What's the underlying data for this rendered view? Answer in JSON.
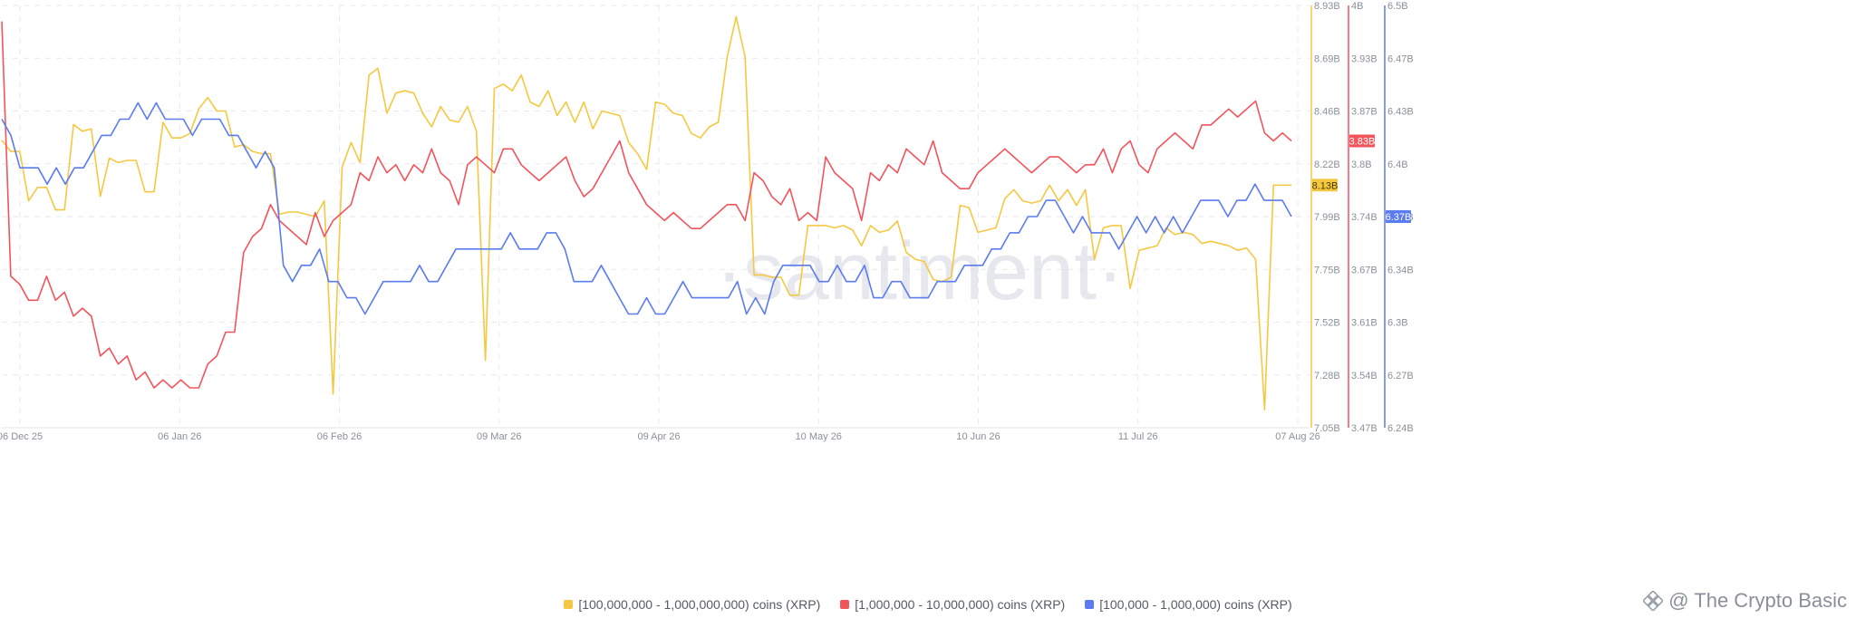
{
  "chart_data": {
    "type": "line",
    "x_ticks": [
      "06 Dec 25",
      "06 Jan 26",
      "06 Feb 26",
      "09 Mar 26",
      "09 Apr 26",
      "10 May 26",
      "10 Jun 26",
      "11 Jul 26",
      "07 Aug 26"
    ],
    "axes": [
      {
        "id": "yellow_axis",
        "ticks": [
          "8.93B",
          "8.69B",
          "8.46B",
          "8.22B",
          "7.99B",
          "7.75B",
          "7.52B",
          "7.28B",
          "7.05B"
        ],
        "ylim": [
          7.05,
          8.93
        ],
        "color": "#f5c842",
        "last_value_label": "8.13B"
      },
      {
        "id": "red_axis",
        "ticks": [
          "4B",
          "3.93B",
          "3.87B",
          "3.8B",
          "3.74B",
          "3.67B",
          "3.61B",
          "3.54B",
          "3.47B"
        ],
        "ylim": [
          3.47,
          4.0
        ],
        "color": "#f2545b",
        "last_value_label": "3.83B"
      },
      {
        "id": "blue_axis",
        "ticks": [
          "6.5B",
          "6.47B",
          "6.43B",
          "6.4B",
          "6.37B",
          "6.34B",
          "6.3B",
          "6.27B",
          "6.24B"
        ],
        "ylim": [
          6.24,
          6.5
        ],
        "color": "#5b7bf0",
        "last_value_label": "6.37B"
      }
    ],
    "series": [
      {
        "name": "[100,000,000 - 1,000,000,000) coins (XRP)",
        "axis": "yellow_axis",
        "color": "#f5c842",
        "values": [
          8.33,
          8.28,
          8.28,
          8.06,
          8.12,
          8.12,
          8.02,
          8.02,
          8.4,
          8.37,
          8.38,
          8.08,
          8.25,
          8.23,
          8.24,
          8.24,
          8.1,
          8.1,
          8.41,
          8.34,
          8.34,
          8.36,
          8.47,
          8.52,
          8.46,
          8.46,
          8.3,
          8.31,
          8.28,
          8.27,
          8.27,
          8.0,
          8.01,
          8.01,
          8.0,
          7.99,
          8.06,
          7.2,
          8.21,
          8.32,
          8.23,
          8.62,
          8.65,
          8.45,
          8.54,
          8.55,
          8.54,
          8.45,
          8.39,
          8.48,
          8.42,
          8.41,
          8.48,
          8.37,
          7.35,
          8.56,
          8.58,
          8.55,
          8.62,
          8.5,
          8.48,
          8.55,
          8.44,
          8.5,
          8.41,
          8.5,
          8.38,
          8.46,
          8.45,
          8.44,
          8.32,
          8.27,
          8.2,
          8.5,
          8.49,
          8.45,
          8.44,
          8.36,
          8.34,
          8.39,
          8.41,
          8.7,
          8.88,
          8.7,
          7.73,
          7.73,
          7.72,
          7.72,
          7.64,
          7.64,
          7.95,
          7.95,
          7.95,
          7.94,
          7.95,
          7.93,
          7.86,
          7.95,
          7.92,
          7.93,
          7.97,
          7.83,
          7.8,
          7.79,
          7.71,
          7.7,
          7.72,
          8.04,
          8.03,
          7.92,
          7.93,
          7.94,
          8.07,
          8.11,
          8.06,
          8.05,
          8.06,
          8.13,
          8.06,
          8.11,
          8.04,
          8.11,
          7.8,
          7.94,
          7.95,
          7.95,
          7.67,
          7.84,
          7.85,
          7.86,
          7.94,
          7.91,
          7.92,
          7.91,
          7.87,
          7.88,
          7.87,
          7.86,
          7.84,
          7.85,
          7.8,
          7.13,
          8.13,
          8.13,
          8.13
        ]
      },
      {
        "name": "[1,000,000 - 10,000,000) coins (XRP)",
        "axis": "red_axis",
        "color": "#f2545b",
        "values": [
          3.98,
          3.66,
          3.65,
          3.63,
          3.63,
          3.66,
          3.63,
          3.64,
          3.61,
          3.62,
          3.61,
          3.56,
          3.57,
          3.55,
          3.56,
          3.53,
          3.54,
          3.52,
          3.53,
          3.52,
          3.53,
          3.52,
          3.52,
          3.55,
          3.56,
          3.59,
          3.59,
          3.69,
          3.71,
          3.72,
          3.75,
          3.73,
          3.72,
          3.71,
          3.7,
          3.74,
          3.71,
          3.73,
          3.74,
          3.75,
          3.79,
          3.78,
          3.81,
          3.79,
          3.8,
          3.78,
          3.8,
          3.79,
          3.82,
          3.79,
          3.78,
          3.75,
          3.8,
          3.81,
          3.8,
          3.79,
          3.82,
          3.82,
          3.8,
          3.79,
          3.78,
          3.79,
          3.8,
          3.81,
          3.78,
          3.76,
          3.77,
          3.79,
          3.81,
          3.83,
          3.79,
          3.77,
          3.75,
          3.74,
          3.73,
          3.74,
          3.73,
          3.72,
          3.72,
          3.73,
          3.74,
          3.75,
          3.75,
          3.73,
          3.79,
          3.78,
          3.76,
          3.75,
          3.77,
          3.73,
          3.74,
          3.73,
          3.81,
          3.79,
          3.78,
          3.77,
          3.73,
          3.79,
          3.78,
          3.8,
          3.79,
          3.82,
          3.81,
          3.8,
          3.83,
          3.79,
          3.78,
          3.77,
          3.77,
          3.79,
          3.8,
          3.81,
          3.82,
          3.81,
          3.8,
          3.79,
          3.8,
          3.81,
          3.81,
          3.8,
          3.79,
          3.8,
          3.8,
          3.82,
          3.79,
          3.82,
          3.83,
          3.8,
          3.79,
          3.82,
          3.83,
          3.84,
          3.83,
          3.82,
          3.85,
          3.85,
          3.86,
          3.87,
          3.86,
          3.87,
          3.88,
          3.84,
          3.83,
          3.84,
          3.83
        ]
      },
      {
        "name": "[100,000  - 1,000,000) coins (XRP)",
        "axis": "blue_axis",
        "color": "#5b7bf0",
        "values": [
          6.43,
          6.42,
          6.4,
          6.4,
          6.4,
          6.39,
          6.4,
          6.39,
          6.4,
          6.4,
          6.41,
          6.42,
          6.42,
          6.43,
          6.43,
          6.44,
          6.43,
          6.44,
          6.43,
          6.43,
          6.43,
          6.42,
          6.43,
          6.43,
          6.43,
          6.42,
          6.42,
          6.41,
          6.4,
          6.41,
          6.4,
          6.34,
          6.33,
          6.34,
          6.34,
          6.35,
          6.33,
          6.33,
          6.32,
          6.32,
          6.31,
          6.32,
          6.33,
          6.33,
          6.33,
          6.33,
          6.34,
          6.33,
          6.33,
          6.34,
          6.35,
          6.35,
          6.35,
          6.35,
          6.35,
          6.35,
          6.36,
          6.35,
          6.35,
          6.35,
          6.36,
          6.36,
          6.35,
          6.33,
          6.33,
          6.33,
          6.34,
          6.33,
          6.32,
          6.31,
          6.31,
          6.32,
          6.31,
          6.31,
          6.32,
          6.33,
          6.32,
          6.32,
          6.32,
          6.32,
          6.32,
          6.33,
          6.31,
          6.32,
          6.31,
          6.33,
          6.34,
          6.34,
          6.34,
          6.34,
          6.33,
          6.33,
          6.34,
          6.33,
          6.33,
          6.34,
          6.32,
          6.32,
          6.33,
          6.33,
          6.32,
          6.32,
          6.32,
          6.33,
          6.33,
          6.33,
          6.34,
          6.34,
          6.34,
          6.35,
          6.35,
          6.36,
          6.36,
          6.37,
          6.37,
          6.38,
          6.38,
          6.37,
          6.36,
          6.37,
          6.36,
          6.36,
          6.36,
          6.35,
          6.36,
          6.37,
          6.36,
          6.37,
          6.36,
          6.37,
          6.36,
          6.37,
          6.38,
          6.38,
          6.38,
          6.37,
          6.38,
          6.38,
          6.39,
          6.38,
          6.38,
          6.38,
          6.37
        ]
      }
    ],
    "watermark": "·santiment·",
    "grid": true,
    "legend_position": "bottom"
  },
  "credit": {
    "text": "@ The Crypto Basic",
    "icon": "binance-square-icon"
  }
}
